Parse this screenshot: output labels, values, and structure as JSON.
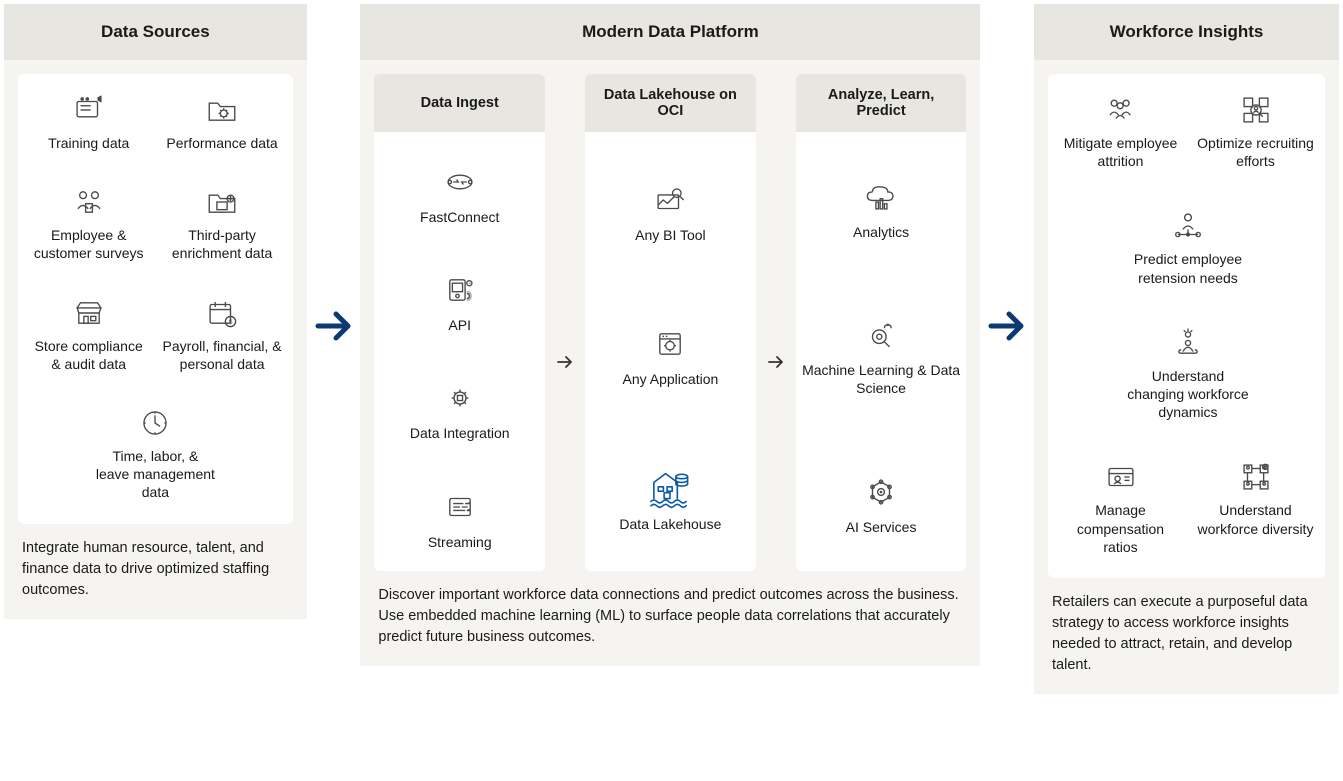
{
  "layout": {
    "arrow_color_main": "#0b3a73",
    "arrow_color_sub": "#333333",
    "bg_header": "#e8e6e0",
    "bg_body": "#f5f4f0",
    "panel_bg": "#ffffff",
    "text_color": "#1a1a1a",
    "lakehouse_icon_color": "#0b5aa8"
  },
  "sources": {
    "title": "Data Sources",
    "items": [
      {
        "label": "Training data",
        "icon": "training"
      },
      {
        "label": "Performance data",
        "icon": "folder-gear"
      },
      {
        "label": "Employee & customer surveys",
        "icon": "surveys"
      },
      {
        "label": "Third-party enrichment data",
        "icon": "folder-plus"
      },
      {
        "label": "Store compliance & audit data",
        "icon": "store"
      },
      {
        "label": "Payroll, financial, & personal data",
        "icon": "calendar-money"
      },
      {
        "label": "Time, labor, & leave management data",
        "icon": "clock",
        "full": true
      }
    ],
    "footer": "Integrate human resource, talent, and finance data to drive optimized staffing outcomes."
  },
  "platform": {
    "title": "Modern Data Platform",
    "cols": [
      {
        "title": "Data Ingest",
        "items": [
          {
            "label": "FastConnect",
            "icon": "fastconnect"
          },
          {
            "label": "API",
            "icon": "api"
          },
          {
            "label": "Data Integration",
            "icon": "integration"
          },
          {
            "label": "Streaming",
            "icon": "streaming"
          }
        ]
      },
      {
        "title": "Data Lakehouse on OCI",
        "items": [
          {
            "label": "Any BI Tool",
            "icon": "bi"
          },
          {
            "label": "Any Application",
            "icon": "app"
          },
          {
            "label": "Data Lakehouse",
            "icon": "lakehouse",
            "highlight": true
          }
        ]
      },
      {
        "title": "Analyze, Learn, Predict",
        "items": [
          {
            "label": "Analytics",
            "icon": "analytics"
          },
          {
            "label": "Machine Learning & Data Science",
            "icon": "ml"
          },
          {
            "label": "AI Services",
            "icon": "ai"
          }
        ]
      }
    ],
    "footer": "Discover important workforce data connections and predict outcomes across the business. Use embedded machine learning (ML) to surface people data correlations that accurately predict future business outcomes."
  },
  "insights": {
    "title": "Workforce Insights",
    "items": [
      {
        "label": "Mitigate employee attrition",
        "icon": "attrition"
      },
      {
        "label": "Optimize recruiting efforts",
        "icon": "recruit"
      },
      {
        "label": "Predict employee retension needs",
        "icon": "predict",
        "full": true
      },
      {
        "label": "Understand changing workforce dynamics",
        "icon": "dynamics",
        "full": true
      },
      {
        "label": "Manage compensation ratios",
        "icon": "compensation"
      },
      {
        "label": "Understand workforce diversity",
        "icon": "diversity"
      }
    ],
    "footer": "Retailers can execute a purposeful data strategy to access workforce insights needed to attract, retain, and develop talent."
  }
}
